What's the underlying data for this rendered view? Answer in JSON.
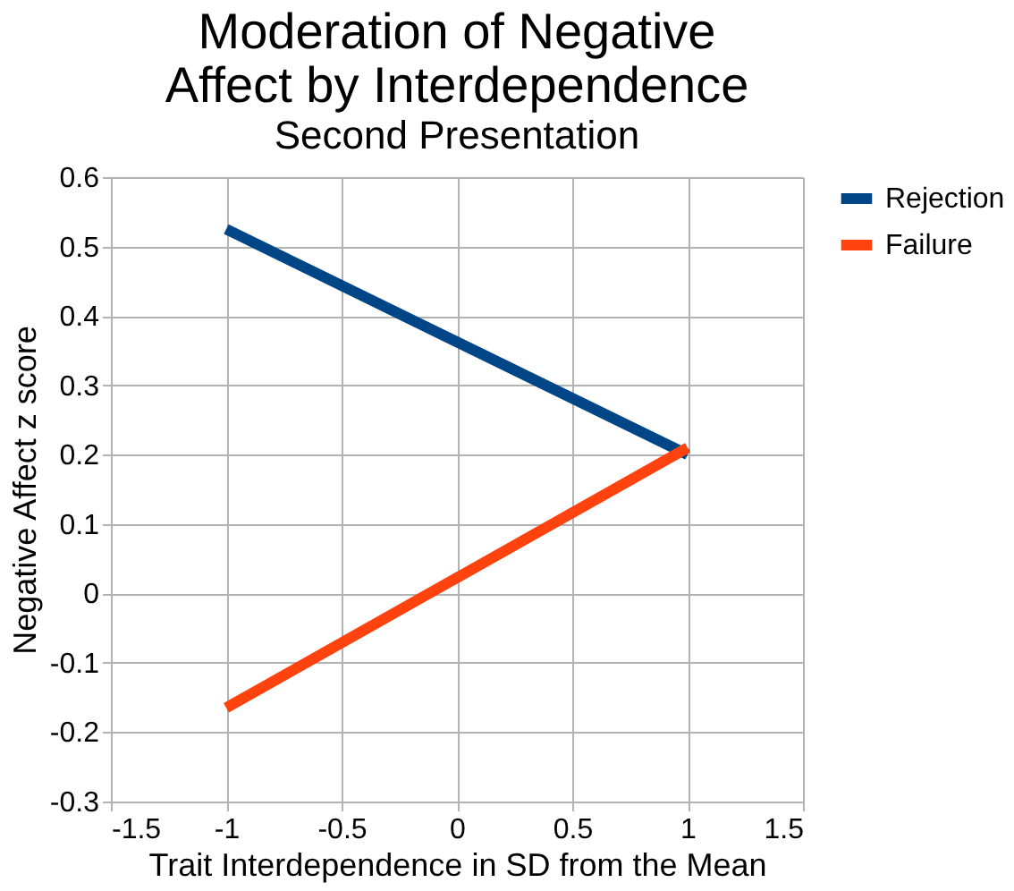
{
  "chart_data": {
    "type": "line",
    "title": [
      "Moderation of Negative",
      "Affect by Interdependence"
    ],
    "subtitle": "Second Presentation",
    "xlabel": "Trait Interdependence in SD from the Mean",
    "ylabel": "Negative Affect  z score",
    "x": [
      -1,
      1
    ],
    "series": [
      {
        "name": "Rejection",
        "color": "#004586",
        "values": [
          0.525,
          0.2
        ]
      },
      {
        "name": "Failure",
        "color": "#ff420e",
        "values": [
          -0.165,
          0.21
        ]
      }
    ],
    "xlim": [
      -1.5,
      1.5
    ],
    "xticks": [
      -1.5,
      -1,
      -0.5,
      0,
      0.5,
      1,
      1.5
    ],
    "ylim": [
      -0.3,
      0.6
    ],
    "yticks": [
      -0.3,
      -0.2,
      -0.1,
      0,
      0.1,
      0.2,
      0.3,
      0.4,
      0.5,
      0.6
    ],
    "grid": true,
    "legend": "right",
    "marker": "none",
    "line_style": "solid"
  }
}
